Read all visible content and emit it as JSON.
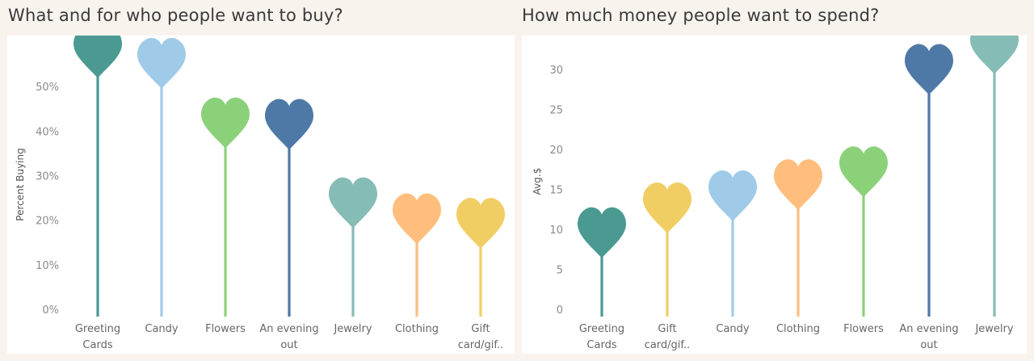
{
  "colors": {
    "greeting": "#4a9a92",
    "candy": "#a0cbe8",
    "flowers": "#8bd17a",
    "evening": "#4e79a7",
    "jewelry": "#86bcb6",
    "clothing": "#ffbe7d",
    "gift": "#f1ce63"
  },
  "chart_data": [
    {
      "type": "lollipop",
      "title": "What and for who people want to buy?",
      "ylabel": "Percent Buying",
      "ylim": [
        0,
        56
      ],
      "yticks": [
        0,
        10,
        20,
        30,
        40,
        50
      ],
      "ytick_labels": [
        "0%",
        "10%",
        "20%",
        "30%",
        "40%",
        "50%"
      ],
      "categories": [
        [
          "Greeting",
          "Cards"
        ],
        [
          "Candy"
        ],
        [
          "Flowers"
        ],
        [
          "An evening",
          "out"
        ],
        [
          "Jewelry"
        ],
        [
          "Clothing"
        ],
        [
          "Gift",
          "card/gif.."
        ]
      ],
      "color_keys": [
        "greeting",
        "candy",
        "flowers",
        "evening",
        "jewelry",
        "clothing",
        "gift"
      ],
      "values": [
        51.9,
        49.5,
        36.1,
        35.8,
        18.2,
        14.6,
        13.6
      ]
    },
    {
      "type": "lollipop",
      "title": "How much money people want to spend?",
      "ylabel": "Avg.$",
      "ylim": [
        0,
        32
      ],
      "yticks": [
        0,
        5,
        10,
        15,
        20,
        25,
        30
      ],
      "ytick_labels": [
        "0",
        "5",
        "10",
        "15",
        "20",
        "25",
        "30"
      ],
      "categories": [
        [
          "Greeting",
          "Cards"
        ],
        [
          "Gift",
          "card/gif.."
        ],
        [
          "Candy"
        ],
        [
          "Clothing"
        ],
        [
          "Flowers"
        ],
        [
          "An evening",
          "out"
        ],
        [
          "Jewelry"
        ]
      ],
      "color_keys": [
        "greeting",
        "gift",
        "candy",
        "clothing",
        "flowers",
        "evening",
        "jewelry"
      ],
      "values": [
        6.4,
        9.5,
        11.0,
        12.4,
        14.0,
        26.8,
        29.4
      ]
    }
  ]
}
